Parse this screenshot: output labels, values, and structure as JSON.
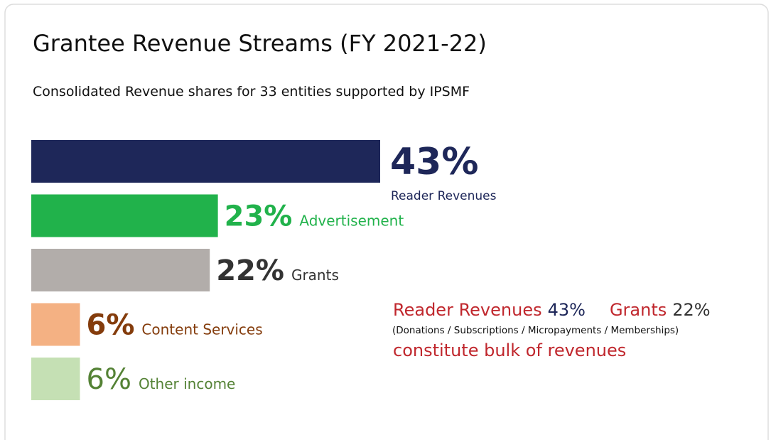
{
  "chart_data": {
    "type": "bar",
    "orientation": "horizontal",
    "title": "Grantee Revenue Streams (FY 2021-22)",
    "subtitle": "Consolidated Revenue shares for 33 entities supported by IPSMF",
    "categories": [
      "Reader Revenues",
      "Advertisement",
      "Grants",
      "Content Services",
      "Other income"
    ],
    "values": [
      43,
      23,
      22,
      6,
      6
    ],
    "value_labels": [
      "43%",
      "23%",
      "22%",
      "6%",
      "6%"
    ],
    "colors": [
      "#1e2759",
      "#21b24b",
      "#b2adaa",
      "#f4b183",
      "#c5e0b4"
    ],
    "label_colors": [
      "#1e2759",
      "#21b24b",
      "#333333",
      "#843c0c",
      "#548235"
    ],
    "annotation": {
      "parts": [
        {
          "text": "Reader Revenues",
          "color": "#c0272d"
        },
        {
          "text": "43%",
          "color": "#1e2759"
        },
        {
          "text": "Grants",
          "color": "#c0272d"
        },
        {
          "text": "22%",
          "color": "#333333"
        }
      ],
      "note": "(Donations / Subscriptions / Micropayments / Memberships)",
      "conclusion": "constitute bulk of revenues"
    }
  }
}
